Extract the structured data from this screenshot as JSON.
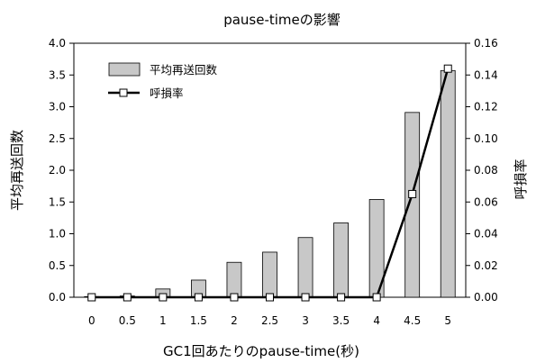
{
  "chart_data": {
    "type": "bar+line",
    "title": "pause-timeの影響",
    "xlabel": "GC1回あたりのpause-time(秒)",
    "ylabel_left": "平均再送回数",
    "ylabel_right": "呼損率",
    "categories": [
      "0",
      "0.5",
      "1",
      "1.5",
      "2",
      "2.5",
      "3",
      "3.5",
      "4",
      "4.5",
      "5"
    ],
    "ylim_left": [
      0,
      4.0
    ],
    "ylim_right": [
      0,
      0.16
    ],
    "yticks_left": [
      "0.0",
      "0.5",
      "1.0",
      "1.5",
      "2.0",
      "2.5",
      "3.0",
      "3.5",
      "4.0"
    ],
    "yticks_right": [
      "0.00",
      "0.02",
      "0.04",
      "0.06",
      "0.08",
      "0.10",
      "0.12",
      "0.14",
      "0.16"
    ],
    "legend_position": "top-left",
    "grid": false,
    "series": [
      {
        "name": "平均再送回数",
        "type": "bar",
        "axis": "left",
        "color": "#c8c8c8",
        "values": [
          0.01,
          0.02,
          0.13,
          0.27,
          0.55,
          0.71,
          0.94,
          1.17,
          1.54,
          2.91,
          3.57
        ]
      },
      {
        "name": "呼損率",
        "type": "line",
        "axis": "right",
        "color": "#000000",
        "marker": "square-open",
        "values": [
          0,
          0,
          0,
          0,
          0,
          0,
          0,
          0,
          0,
          0.065,
          0.144
        ]
      }
    ]
  }
}
